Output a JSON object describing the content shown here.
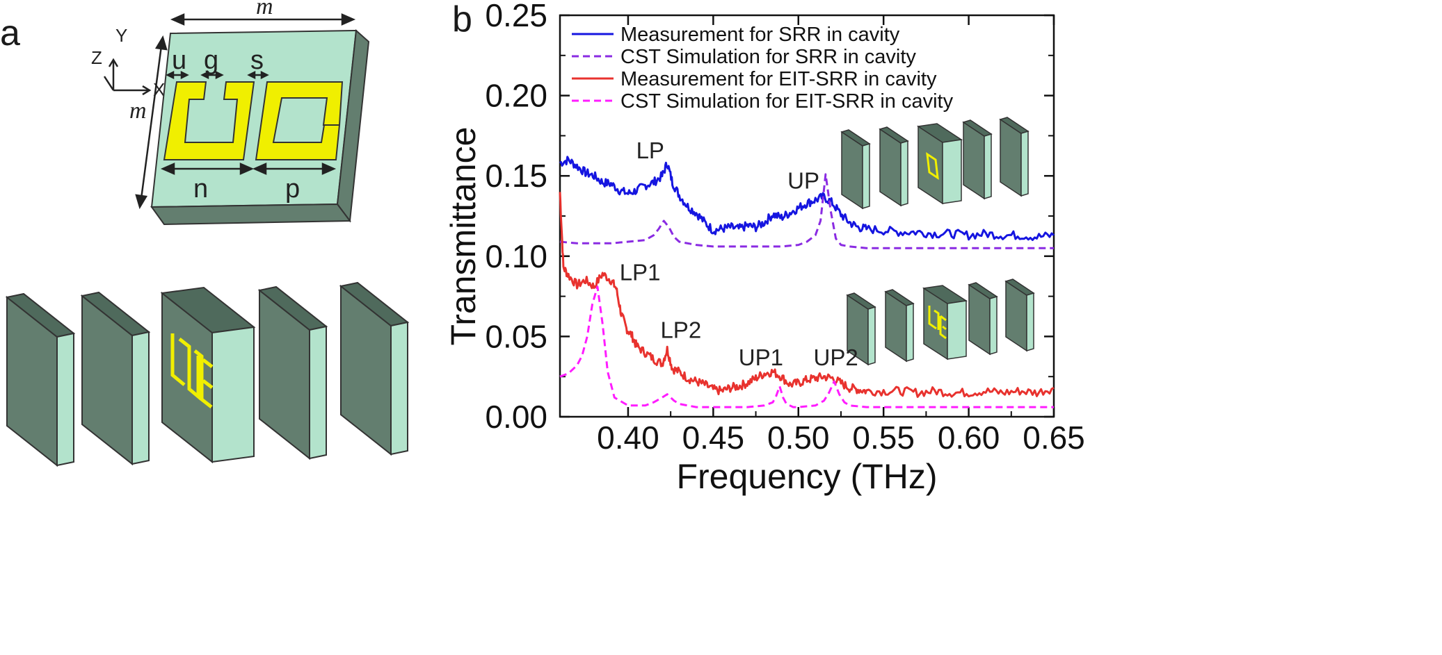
{
  "panel_a": {
    "label": "a",
    "axes": {
      "z": "Z",
      "y": "Y",
      "x": "X"
    },
    "dims": {
      "m_top": "m",
      "m_left": "m",
      "u": "u",
      "g": "g",
      "s": "s",
      "n": "n",
      "p": "p"
    },
    "colors": {
      "substrate_face": "#b3e3cc",
      "substrate_side": "#637e6f",
      "resonator": "#f0ef00",
      "outline": "#333333"
    }
  },
  "chart_data": {
    "panel_label": "b",
    "type": "line",
    "xlabel": "Frequency (THz)",
    "ylabel": "Transmittance",
    "xlim": [
      0.36,
      0.65
    ],
    "ylim": [
      0.0,
      0.25
    ],
    "xticks": [
      0.4,
      0.45,
      0.5,
      0.55,
      0.6,
      0.65
    ],
    "xtick_labels": [
      "0.40",
      "0.45",
      "0.50",
      "0.55",
      "0.60",
      "0.65"
    ],
    "yticks": [
      0.0,
      0.05,
      0.1,
      0.15,
      0.2,
      0.25
    ],
    "ytick_labels": [
      "0.00",
      "0.05",
      "0.10",
      "0.15",
      "0.20",
      "0.25"
    ],
    "legend_position": "top-left",
    "series": [
      {
        "name": "Measurement for SRR in cavity",
        "color": "#1515e0",
        "dash": "solid",
        "x": [
          0.36,
          0.365,
          0.37,
          0.375,
          0.38,
          0.385,
          0.39,
          0.395,
          0.4,
          0.405,
          0.41,
          0.415,
          0.42,
          0.423,
          0.426,
          0.43,
          0.435,
          0.44,
          0.445,
          0.45,
          0.455,
          0.46,
          0.465,
          0.47,
          0.475,
          0.48,
          0.485,
          0.49,
          0.495,
          0.5,
          0.505,
          0.51,
          0.515,
          0.52,
          0.525,
          0.53,
          0.535,
          0.54,
          0.55,
          0.56,
          0.57,
          0.58,
          0.59,
          0.6,
          0.61,
          0.62,
          0.63,
          0.64,
          0.65
        ],
        "values": [
          0.158,
          0.16,
          0.156,
          0.152,
          0.15,
          0.146,
          0.145,
          0.141,
          0.139,
          0.141,
          0.144,
          0.146,
          0.15,
          0.158,
          0.146,
          0.138,
          0.131,
          0.127,
          0.121,
          0.116,
          0.117,
          0.118,
          0.117,
          0.119,
          0.118,
          0.121,
          0.126,
          0.124,
          0.127,
          0.13,
          0.133,
          0.135,
          0.137,
          0.133,
          0.126,
          0.121,
          0.118,
          0.117,
          0.116,
          0.115,
          0.115,
          0.114,
          0.114,
          0.113,
          0.114,
          0.113,
          0.113,
          0.112,
          0.113
        ]
      },
      {
        "name": "CST Simulation for SRR in cavity",
        "color": "#8a2be2",
        "dash": "dashed",
        "x": [
          0.36,
          0.37,
          0.38,
          0.39,
          0.4,
          0.41,
          0.415,
          0.418,
          0.421,
          0.424,
          0.427,
          0.43,
          0.44,
          0.45,
          0.46,
          0.47,
          0.48,
          0.49,
          0.5,
          0.505,
          0.51,
          0.513,
          0.516,
          0.519,
          0.522,
          0.525,
          0.53,
          0.54,
          0.55,
          0.56,
          0.58,
          0.6,
          0.62,
          0.65
        ],
        "values": [
          0.109,
          0.108,
          0.108,
          0.108,
          0.109,
          0.11,
          0.113,
          0.117,
          0.122,
          0.118,
          0.112,
          0.109,
          0.107,
          0.106,
          0.106,
          0.106,
          0.106,
          0.106,
          0.107,
          0.109,
          0.113,
          0.122,
          0.151,
          0.128,
          0.111,
          0.107,
          0.106,
          0.105,
          0.105,
          0.105,
          0.105,
          0.105,
          0.105,
          0.105
        ]
      },
      {
        "name": "Measurement for EIT-SRR in cavity",
        "color": "#e8322e",
        "dash": "solid",
        "x": [
          0.36,
          0.362,
          0.365,
          0.37,
          0.375,
          0.38,
          0.385,
          0.39,
          0.393,
          0.396,
          0.399,
          0.402,
          0.405,
          0.41,
          0.415,
          0.42,
          0.423,
          0.426,
          0.43,
          0.435,
          0.44,
          0.445,
          0.45,
          0.455,
          0.46,
          0.465,
          0.47,
          0.475,
          0.48,
          0.485,
          0.49,
          0.495,
          0.5,
          0.505,
          0.51,
          0.515,
          0.52,
          0.525,
          0.53,
          0.535,
          0.54,
          0.55,
          0.56,
          0.57,
          0.58,
          0.59,
          0.6,
          0.61,
          0.62,
          0.63,
          0.64,
          0.65
        ],
        "values": [
          0.14,
          0.093,
          0.088,
          0.082,
          0.085,
          0.081,
          0.089,
          0.085,
          0.08,
          0.064,
          0.055,
          0.051,
          0.044,
          0.04,
          0.036,
          0.033,
          0.042,
          0.03,
          0.028,
          0.024,
          0.022,
          0.02,
          0.017,
          0.016,
          0.018,
          0.019,
          0.021,
          0.024,
          0.027,
          0.028,
          0.025,
          0.02,
          0.021,
          0.023,
          0.024,
          0.025,
          0.024,
          0.021,
          0.018,
          0.017,
          0.016,
          0.016,
          0.016,
          0.015,
          0.016,
          0.015,
          0.015,
          0.016,
          0.015,
          0.016,
          0.015,
          0.018
        ]
      },
      {
        "name": "CST Simulation for EIT-SRR in cavity",
        "color": "#ff1cff",
        "dash": "dashed",
        "x": [
          0.36,
          0.365,
          0.37,
          0.373,
          0.376,
          0.379,
          0.382,
          0.385,
          0.388,
          0.392,
          0.4,
          0.41,
          0.415,
          0.42,
          0.423,
          0.427,
          0.43,
          0.44,
          0.45,
          0.46,
          0.47,
          0.48,
          0.485,
          0.487,
          0.489,
          0.491,
          0.493,
          0.497,
          0.5,
          0.51,
          0.515,
          0.518,
          0.521,
          0.524,
          0.527,
          0.53,
          0.54,
          0.55,
          0.56,
          0.58,
          0.6,
          0.62,
          0.65
        ],
        "values": [
          0.025,
          0.027,
          0.032,
          0.038,
          0.05,
          0.07,
          0.081,
          0.058,
          0.028,
          0.012,
          0.007,
          0.007,
          0.009,
          0.012,
          0.014,
          0.01,
          0.008,
          0.006,
          0.006,
          0.006,
          0.006,
          0.007,
          0.009,
          0.013,
          0.019,
          0.012,
          0.008,
          0.006,
          0.006,
          0.007,
          0.01,
          0.015,
          0.022,
          0.014,
          0.009,
          0.007,
          0.006,
          0.006,
          0.006,
          0.006,
          0.006,
          0.006,
          0.006
        ]
      }
    ],
    "annotations": [
      {
        "text": "LP",
        "x": 0.413,
        "y": 0.161
      },
      {
        "text": "UP",
        "x": 0.503,
        "y": 0.142
      },
      {
        "text": "LP1",
        "x": 0.407,
        "y": 0.085
      },
      {
        "text": "LP2",
        "x": 0.431,
        "y": 0.049
      },
      {
        "text": "UP1",
        "x": 0.478,
        "y": 0.032
      },
      {
        "text": "UP2",
        "x": 0.522,
        "y": 0.032
      }
    ]
  }
}
